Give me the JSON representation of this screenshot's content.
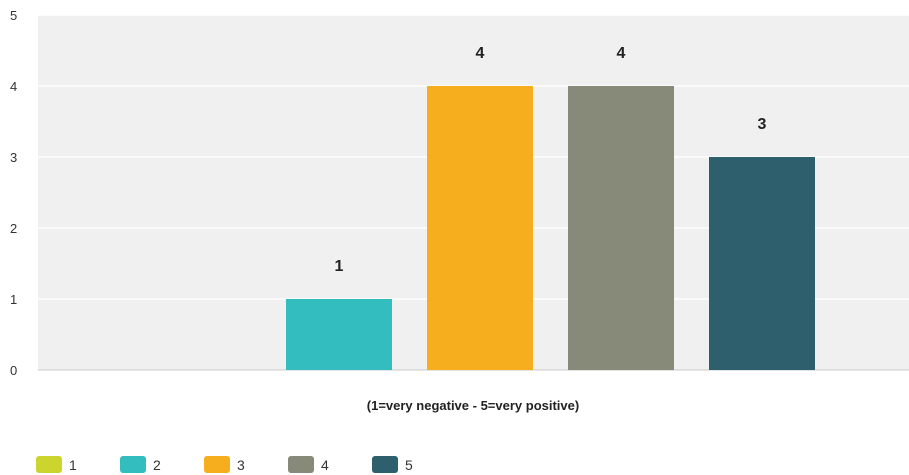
{
  "chart_data": {
    "type": "bar",
    "categories": [
      "1",
      "2",
      "3",
      "4",
      "5"
    ],
    "values": [
      0,
      1,
      4,
      4,
      3
    ],
    "data_labels": [
      "",
      "1",
      "4",
      "4",
      "3"
    ],
    "colors": [
      "#ccd52e",
      "#33bdbf",
      "#f6ae1f",
      "#878a78",
      "#2e5f6c"
    ],
    "title": "",
    "xlabel": "(1=very negative - 5=very positive)",
    "ylabel": "",
    "ylim": [
      0,
      5
    ],
    "yticks": [
      "0",
      "1",
      "2",
      "3",
      "4",
      "5"
    ],
    "grid": true,
    "legend_position": "bottom-left",
    "legend": [
      "1",
      "2",
      "3",
      "4",
      "5"
    ],
    "plot_background": "#f0f0f0",
    "gridline_color": "#ffffff"
  }
}
